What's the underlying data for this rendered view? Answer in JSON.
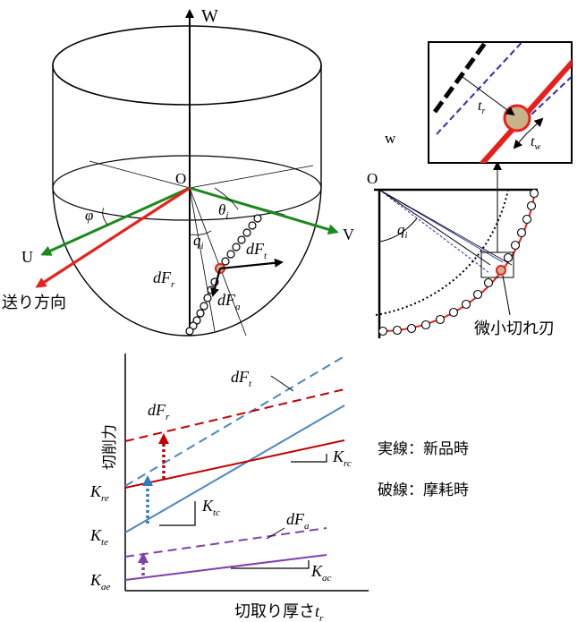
{
  "tool_view": {
    "axis_w": "W",
    "axis_u": "U",
    "axis_v": "V",
    "origin": "O",
    "angle_phi": "φ",
    "angle_theta": "θ",
    "angle_theta_sub": "i",
    "angle_q": "q",
    "angle_q_sub": "i",
    "force_dfr": "dF",
    "force_dfr_sub": "r",
    "force_dft": "dF",
    "force_dft_sub": "t",
    "force_dfa": "dF",
    "force_dfa_sub": "a",
    "feed_direction": "送り方向",
    "colors": {
      "u_axis": "#1a8a1a",
      "v_axis": "#1a8a1a",
      "feed": "#e8201c"
    }
  },
  "section_view": {
    "axis_w": "w",
    "origin": "O",
    "angle_q": "q",
    "angle_q_sub": "i",
    "micro_edge_label": "微小切れ刃",
    "inset_tr": "t",
    "inset_tr_sub": "r",
    "inset_tw": "t",
    "inset_tw_sub": "w",
    "colors": {
      "edge": "#e8201c",
      "offset": "#2b2fb0",
      "node_fill": "#c8b28a"
    }
  },
  "force_chart": {
    "ylabel": "切削力",
    "xlabel": "切取り厚さ",
    "xlabel_sym": "t",
    "xlabel_sub": "r",
    "legend_solid": "実線：新品時",
    "legend_dashed": "破線：摩耗時",
    "labels": {
      "dFt": {
        "main": "dF",
        "sub": "t"
      },
      "dFr": {
        "main": "dF",
        "sub": "r"
      },
      "dFa": {
        "main": "dF",
        "sub": "a"
      },
      "Kre": {
        "main": "K",
        "sub": "re"
      },
      "Kte": {
        "main": "K",
        "sub": "te"
      },
      "Kae": {
        "main": "K",
        "sub": "ae"
      },
      "Krc": {
        "main": "K",
        "sub": "rc"
      },
      "Ktc": {
        "main": "K",
        "sub": "tc"
      },
      "Kac": {
        "main": "K",
        "sub": "ac"
      }
    },
    "colors": {
      "t": "#4a86c0",
      "r": "#c00000",
      "a": "#8040b0"
    }
  }
}
